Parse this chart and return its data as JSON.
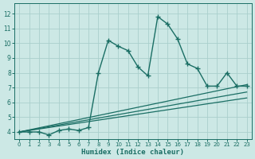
{
  "xlabel": "Humidex (Indice chaleur)",
  "bg_color": "#cce8e5",
  "grid_color": "#aacfcc",
  "line_color": "#1a6e64",
  "xlim": [
    -0.5,
    23.5
  ],
  "ylim": [
    3.5,
    12.7
  ],
  "xticks": [
    0,
    1,
    2,
    3,
    4,
    5,
    6,
    7,
    8,
    9,
    10,
    11,
    12,
    13,
    14,
    15,
    16,
    17,
    18,
    19,
    20,
    21,
    22,
    23
  ],
  "yticks": [
    4,
    5,
    6,
    7,
    8,
    9,
    10,
    11,
    12
  ],
  "main_x": [
    0,
    1,
    2,
    3,
    4,
    5,
    6,
    7,
    8,
    9,
    10,
    11,
    12,
    13,
    14,
    15,
    16,
    17,
    18,
    19,
    20,
    21,
    22,
    23
  ],
  "main_y": [
    4.0,
    4.0,
    4.0,
    3.8,
    4.1,
    4.2,
    4.1,
    4.3,
    8.0,
    10.2,
    9.8,
    9.5,
    8.4,
    7.8,
    11.8,
    11.3,
    10.3,
    8.6,
    8.3,
    7.1,
    7.1,
    8.0,
    7.1,
    7.1
  ],
  "line1_x": [
    0,
    23
  ],
  "line1_y": [
    4.0,
    7.2
  ],
  "line2_x": [
    0,
    23
  ],
  "line2_y": [
    4.0,
    6.7
  ],
  "line3_x": [
    0,
    23
  ],
  "line3_y": [
    4.0,
    6.3
  ]
}
